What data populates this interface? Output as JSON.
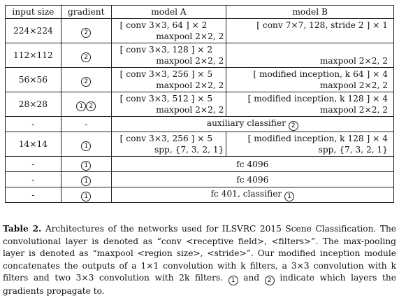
{
  "table": {
    "headers": [
      "input size",
      "gradient",
      "model A",
      "model B"
    ],
    "rows": [
      {
        "size": "224×224",
        "grad": [
          "2"
        ],
        "a": [
          "[ conv 3×3, 64 ] × 2",
          "maxpool 2×2, 2"
        ],
        "b": [
          "[ conv 7×7, 128, stride 2 ] × 1",
          ""
        ]
      },
      {
        "size": "112×112",
        "grad": [
          "2"
        ],
        "a": [
          "[ conv 3×3, 128 ] × 2",
          "maxpool 2×2, 2"
        ],
        "b": [
          "",
          "maxpool 2×2, 2"
        ]
      },
      {
        "size": "56×56",
        "grad": [
          "2"
        ],
        "a": [
          "[ conv 3×3, 256 ] × 5",
          "maxpool 2×2, 2"
        ],
        "b": [
          "[ modified inception, k 64 ] × 4",
          "maxpool 2×2, 2"
        ]
      },
      {
        "size": "28×28",
        "grad": [
          "1",
          "2"
        ],
        "a": [
          "[ conv 3×3, 512 ] × 5",
          "maxpool 2×2, 2"
        ],
        "b": [
          "[ modified inception, k 128 ] × 4",
          "maxpool 2×2, 2"
        ]
      },
      {
        "size": "-",
        "grad": [],
        "dash_grad": "-",
        "span": "auxiliary classifier",
        "span_circ": "2"
      },
      {
        "size": "14×14",
        "grad": [
          "1"
        ],
        "a": [
          "[ conv 3×3, 256 ] × 5",
          "spp, {7, 3, 2, 1}"
        ],
        "b": [
          "[ modified inception, k 128 ] × 4",
          "spp, {7, 3, 2, 1}"
        ]
      },
      {
        "size": "-",
        "grad": [
          "1"
        ],
        "span": "fc 4096"
      },
      {
        "size": "-",
        "grad": [
          "1"
        ],
        "span": "fc 4096"
      },
      {
        "size": "-",
        "grad": [
          "1"
        ],
        "span": "fc 401, classifier",
        "span_circ": "1"
      }
    ]
  },
  "caption": {
    "label": "Table 2.",
    "text_1": " Architectures of the networks used for ILSVRC 2015 Scene Classification. The convolutional layer is denoted as “conv <receptive field>, <filters>”. The max-pooling layer is denoted as “maxpool <region size>, <stride>”. Our modified inception module concatenates the outputs of a 1×1 convolution with k filters, a 3×3 convolution with k filters and two 3×3 convolution with 2k filters. ",
    "circ_1": "1",
    "text_2": " and ",
    "circ_2": "2",
    "text_3": " indicate which layers the gradients propagate to."
  }
}
